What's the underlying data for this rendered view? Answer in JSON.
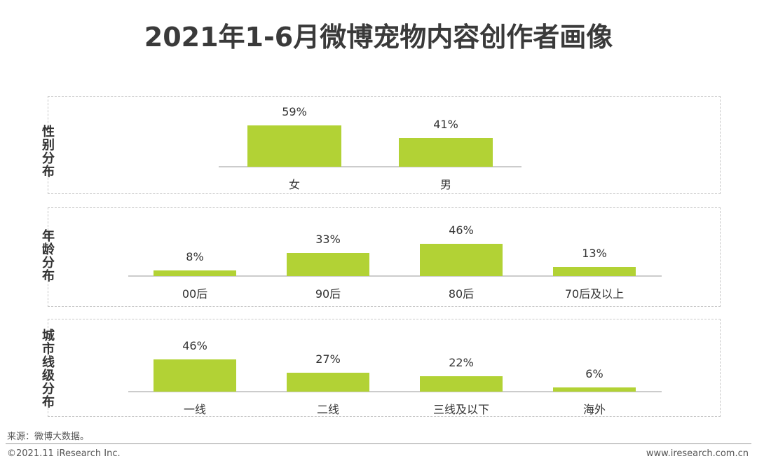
{
  "title": "2021年1-6月微博宠物内容创作者画像",
  "source": "来源：微博大数据。",
  "copyright": "©2021.11 iResearch Inc.",
  "website": "www.iresearch.com.cn",
  "colors": {
    "bar": "#b2d235",
    "axis": "#999999",
    "text": "#333333"
  },
  "chart_data": [
    {
      "type": "bar",
      "panel_label": "性别分布",
      "categories": [
        "女",
        "男"
      ],
      "values": [
        59,
        41
      ],
      "value_labels": [
        "59%",
        "41%"
      ]
    },
    {
      "type": "bar",
      "panel_label": "年龄分布",
      "categories": [
        "00后",
        "90后",
        "80后",
        "70后及以上"
      ],
      "values": [
        8,
        33,
        46,
        13
      ],
      "value_labels": [
        "8%",
        "33%",
        "46%",
        "13%"
      ]
    },
    {
      "type": "bar",
      "panel_label": "城市线级分布",
      "categories": [
        "一线",
        "二线",
        "三线及以下",
        "海外"
      ],
      "values": [
        46,
        27,
        22,
        6
      ],
      "value_labels": [
        "46%",
        "27%",
        "22%",
        "6%"
      ]
    }
  ]
}
